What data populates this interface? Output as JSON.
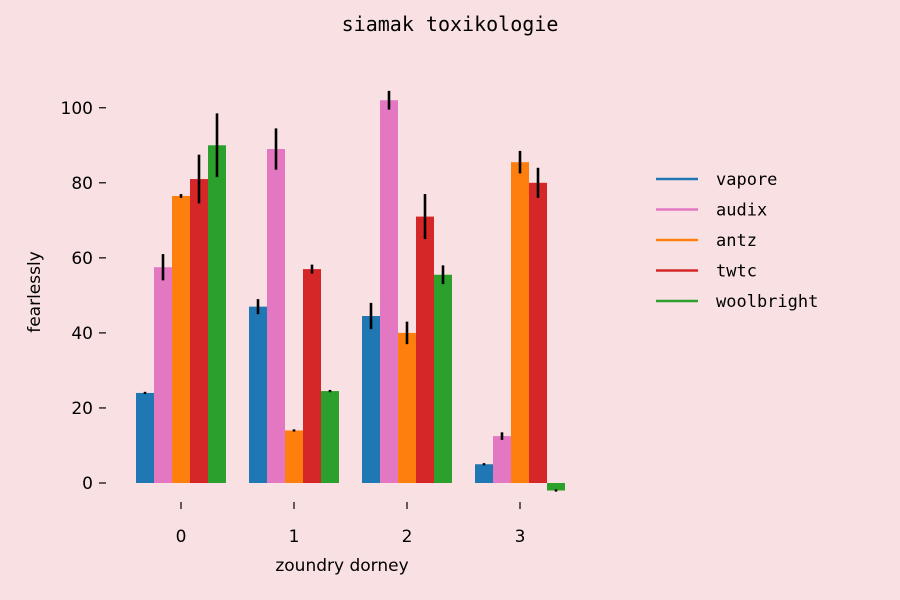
{
  "chart_data": {
    "type": "bar",
    "title": "siamak toxikologie",
    "xlabel": "zoundry dorney",
    "ylabel": "fearlessly",
    "categories": [
      "0",
      "1",
      "2",
      "3"
    ],
    "yticks": [
      "0",
      "20",
      "40",
      "60",
      "80",
      "100"
    ],
    "ylim": [
      -3,
      110
    ],
    "grid": false,
    "legend_position": "right",
    "series": [
      {
        "name": "vapore",
        "color": "#1f77b4",
        "values": [
          24,
          47,
          44.5,
          5
        ],
        "errors": [
          0.3,
          2,
          3.5,
          0.3
        ]
      },
      {
        "name": "audix",
        "color": "#e377c2",
        "values": [
          57.5,
          89,
          102,
          12.5
        ],
        "errors": [
          3.5,
          5.5,
          2.5,
          1
        ]
      },
      {
        "name": "antz",
        "color": "#ff7f0e",
        "values": [
          76.5,
          14,
          40,
          85.5
        ],
        "errors": [
          0.5,
          0.3,
          3,
          3
        ]
      },
      {
        "name": "twtc",
        "color": "#d62728",
        "values": [
          81,
          57,
          71,
          80
        ],
        "errors": [
          6.5,
          1.2,
          6,
          4
        ]
      },
      {
        "name": "woolbright",
        "color": "#2ca02c",
        "values": [
          90,
          24.5,
          55.5,
          -2
        ],
        "errors": [
          8.5,
          0.3,
          2.5,
          0.3
        ]
      }
    ]
  }
}
